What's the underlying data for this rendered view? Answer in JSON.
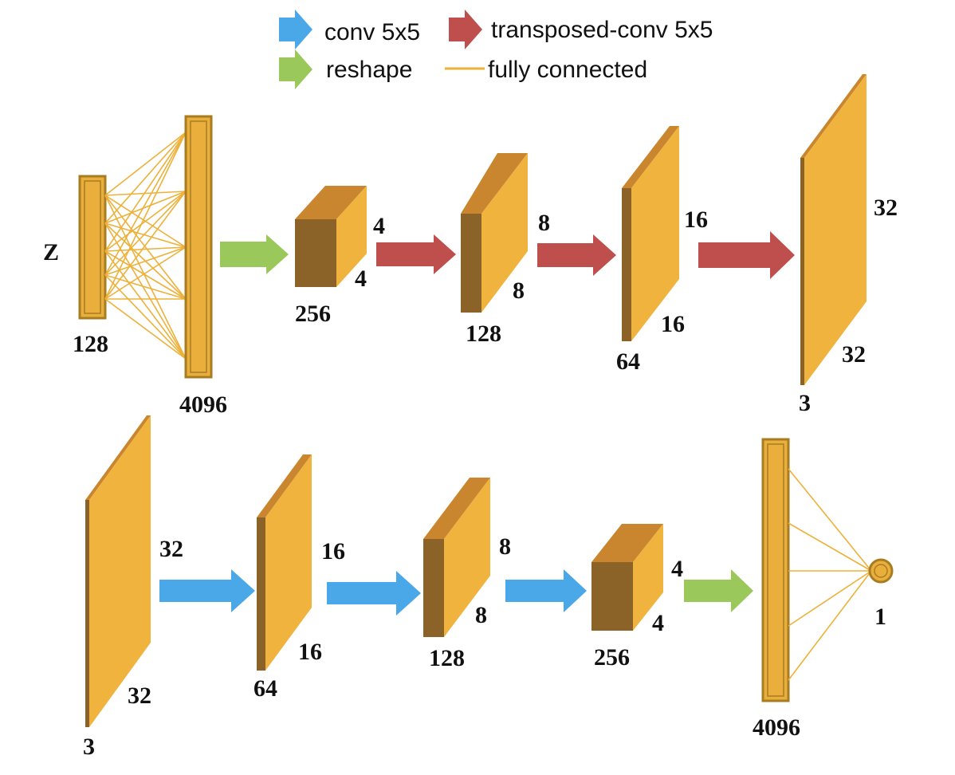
{
  "colors": {
    "block_front": "#EFB33E",
    "block_top": "#C9862F",
    "block_side": "#8B6328",
    "column_fill": "#E9AE3C",
    "column_edge": "#A87D22",
    "fc_line": "#EDB13A",
    "conv_arrow": "#4BA8E8",
    "transposed_arrow": "#BF4F4D",
    "reshape_arrow": "#9BC85A"
  },
  "legend": {
    "conv": "conv 5x5",
    "transposed": "transposed-conv 5x5",
    "reshape": "reshape",
    "fc": "fully connected"
  },
  "generator": {
    "z_label": "Z",
    "input_size": "128",
    "fc_size": "4096",
    "b1": {
      "channels": "256",
      "h": "4",
      "w": "4"
    },
    "b2": {
      "channels": "128",
      "h": "8",
      "w": "8"
    },
    "b3": {
      "channels": "64",
      "h": "16",
      "w": "16"
    },
    "b4": {
      "channels": "3",
      "h": "32",
      "w": "32"
    }
  },
  "discriminator": {
    "b1": {
      "channels": "3",
      "h": "32",
      "w": "32"
    },
    "b2": {
      "channels": "64",
      "h": "16",
      "w": "16"
    },
    "b3": {
      "channels": "128",
      "h": "8",
      "w": "8"
    },
    "b4": {
      "channels": "256",
      "h": "4",
      "w": "4"
    },
    "fc_size": "4096",
    "output_size": "1"
  }
}
